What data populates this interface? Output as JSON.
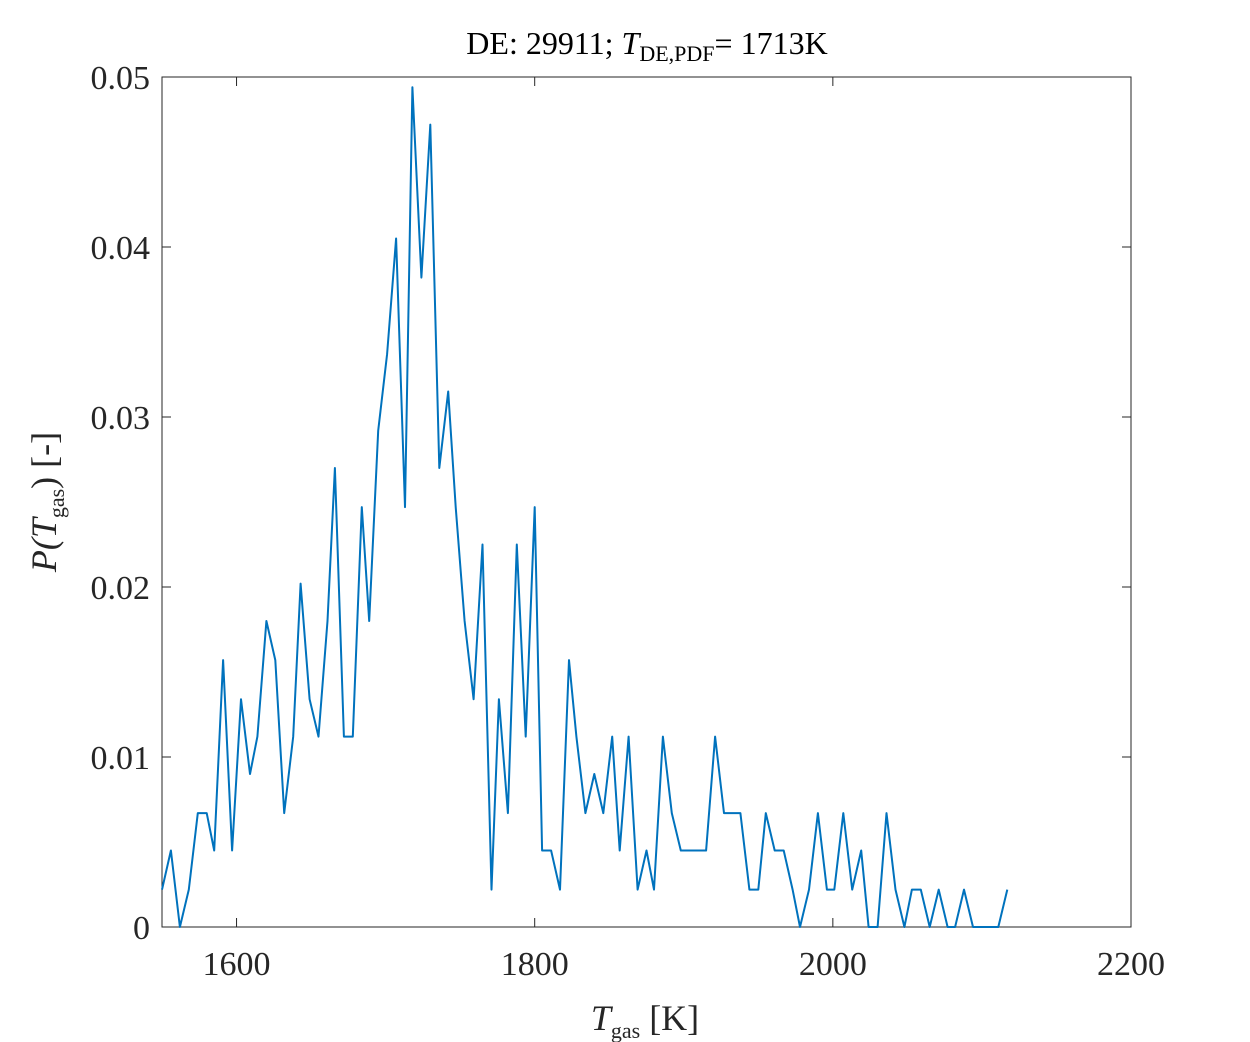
{
  "chart_data": {
    "type": "line",
    "title_parts": {
      "prefix": "DE: 29911; ",
      "var": "T",
      "subscript": "DE,PDF",
      "suffix": "= 1713K"
    },
    "xlabel_parts": {
      "var": "T",
      "subscript": "gas",
      "unit": " [K]"
    },
    "ylabel_parts": {
      "func": "P(",
      "var": "T",
      "subscript": "gas",
      "rest": ") [-]"
    },
    "xlim": [
      1550,
      2200
    ],
    "ylim": [
      0,
      0.05
    ],
    "x_ticks": [
      1600,
      1800,
      2000,
      2200
    ],
    "x_tick_labels": [
      "1600",
      "1800",
      "2000",
      "2200"
    ],
    "y_ticks": [
      0,
      0.01,
      0.02,
      0.03,
      0.04,
      0.05
    ],
    "y_tick_labels": [
      "0",
      "0.01",
      "0.02",
      "0.03",
      "0.04",
      "0.05"
    ],
    "grid": false,
    "line_color": "#0072BD",
    "series": [
      {
        "x": [
          1550,
          1556,
          1562,
          1568,
          1574,
          1580,
          1585,
          1591,
          1597,
          1603,
          1609,
          1614,
          1620,
          1626,
          1632,
          1638,
          1643,
          1649,
          1655,
          1661,
          1666,
          1672,
          1678,
          1684,
          1689,
          1695,
          1701,
          1707,
          1713,
          1718,
          1724,
          1730,
          1736,
          1742,
          1747,
          1753,
          1759,
          1765,
          1771,
          1776,
          1782,
          1788,
          1794,
          1800,
          1805,
          1811,
          1817,
          1823,
          1828,
          1834,
          1840,
          1846,
          1852,
          1857,
          1863,
          1869,
          1875,
          1880,
          1886,
          1892,
          1898,
          1904,
          1909,
          1915,
          1921,
          1927,
          1932,
          1938,
          1944,
          1950,
          1955,
          1961,
          1967,
          1973,
          1978,
          1984,
          1990,
          1996,
          2001,
          2007,
          2013,
          2019,
          2024,
          2030,
          2036,
          2042,
          2048,
          2053,
          2059,
          2065,
          2071,
          2077,
          2082,
          2088,
          2094,
          2100,
          2106,
          2111,
          2117
        ],
        "values": [
          0.0022,
          0.0045,
          0,
          0.0022,
          0.0067,
          0.0067,
          0.0045,
          0.0157,
          0.0045,
          0.0134,
          0.009,
          0.0112,
          0.018,
          0.0157,
          0.0067,
          0.0112,
          0.0202,
          0.0134,
          0.0112,
          0.018,
          0.027,
          0.0112,
          0.0112,
          0.0247,
          0.018,
          0.0292,
          0.0337,
          0.0405,
          0.0247,
          0.0494,
          0.0382,
          0.0472,
          0.027,
          0.0315,
          0.0247,
          0.018,
          0.0134,
          0.0225,
          0.0022,
          0.0134,
          0.0067,
          0.0225,
          0.0112,
          0.0247,
          0.0045,
          0.0045,
          0.0022,
          0.0157,
          0.0112,
          0.0067,
          0.009,
          0.0067,
          0.0112,
          0.0045,
          0.0112,
          0.0022,
          0.0045,
          0.0022,
          0.0112,
          0.0067,
          0.0045,
          0.0045,
          0.0045,
          0.0045,
          0.0112,
          0.0067,
          0.0067,
          0.0067,
          0.0022,
          0.0022,
          0.0067,
          0.0045,
          0.0045,
          0.0022,
          0,
          0.0022,
          0.0067,
          0.0022,
          0.0022,
          0.0067,
          0.0022,
          0.0045,
          0,
          0,
          0.0067,
          0.0022,
          0,
          0.0022,
          0.0022,
          0,
          0.0022,
          0,
          0,
          0.0022,
          0,
          0,
          0,
          0,
          0.0022
        ]
      }
    ]
  }
}
